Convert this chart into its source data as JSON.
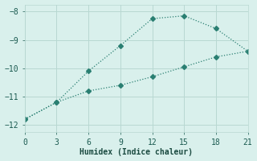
{
  "line1_x": [
    0,
    3,
    6,
    9,
    12,
    15,
    18,
    21
  ],
  "line1_y": [
    -11.8,
    -11.2,
    -10.1,
    -9.2,
    -8.25,
    -8.15,
    -8.6,
    -9.4
  ],
  "line2_x": [
    0,
    3,
    6,
    9,
    12,
    15,
    18,
    21
  ],
  "line2_y": [
    -11.8,
    -11.2,
    -10.8,
    -10.6,
    -10.3,
    -9.95,
    -9.6,
    -9.4
  ],
  "line1_color": "#2a7f72",
  "line2_color": "#2a7f72",
  "marker": "D",
  "marker_size": 3,
  "xlabel": "Humidex (Indice chaleur)",
  "xlim": [
    0,
    21
  ],
  "ylim": [
    -12.25,
    -7.75
  ],
  "xticks": [
    0,
    3,
    6,
    9,
    12,
    15,
    18,
    21
  ],
  "yticks": [
    -12,
    -11,
    -10,
    -9,
    -8
  ],
  "background_color": "#d9f0ec",
  "grid_color": "#b8d8d2",
  "font_family": "monospace",
  "font_size": 7
}
